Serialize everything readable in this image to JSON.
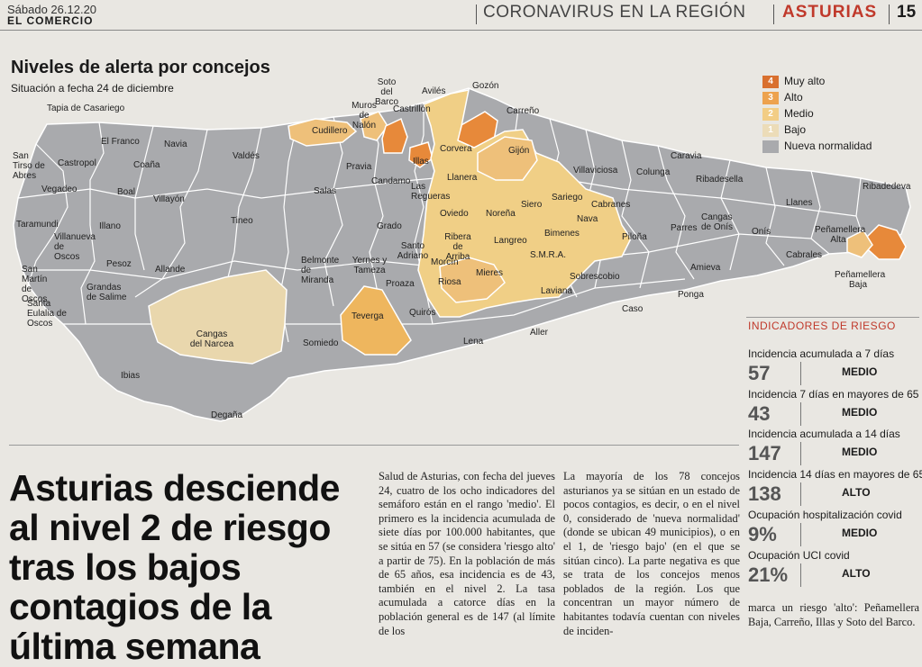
{
  "header": {
    "date": "Sábado 26.12.20",
    "newspaper": "EL COMERCIO",
    "section": "CORONAVIRUS EN LA REGIÓN",
    "region": "ASTURIAS",
    "page": "15"
  },
  "map": {
    "title": "Niveles de alerta por concejos",
    "subtitle": "Situación a fecha 24 de diciembre",
    "colors": {
      "muy_alto": "#e7893a",
      "alto": "#eeb65e",
      "medio": "#f0cf86",
      "bajo": "#e9d7ad",
      "nueva": "#a9aaad",
      "border": "#ffffff"
    },
    "labels": [
      "Tapia de Casariego",
      "El Franco",
      "Navia",
      "San Tirso de Abres",
      "Castropol",
      "Coaña",
      "Valdés",
      "Vegadeo",
      "Boal",
      "Villayón",
      "Taramundi",
      "Villanueva de Oscos",
      "Illano",
      "Tineo",
      "San Martín de Oscos",
      "Pesoz",
      "Allande",
      "Grandas de Salime",
      "Santa Eulalia de Oscos",
      "Cangas del Narcea",
      "Ibias",
      "Degaña",
      "Soto del Barco",
      "Muros de Nalón",
      "Avilés",
      "Castrillón",
      "Gozón",
      "Carreño",
      "Cudillero",
      "Pravia",
      "Illas",
      "Corvera",
      "Gijón",
      "Salas",
      "Candamo",
      "Las Regueras",
      "Llanera",
      "Villaviciosa",
      "Colunga",
      "Caravia",
      "Ribadesella",
      "Llanes",
      "Ribadedeva",
      "Grado",
      "Oviedo",
      "Noreña",
      "Siero",
      "Sariego",
      "Cabranes",
      "Nava",
      "Bimenes",
      "Piloña",
      "Parres",
      "Cangas de Onís",
      "Onís",
      "Peñamellera Alta",
      "Peñamellera Baja",
      "Cabrales",
      "Santo Adriano",
      "Belmonte de Miranda",
      "Yernes y Tameza",
      "Ribera de Arriba",
      "Morcín",
      "Langreo",
      "S.M.R.A.",
      "Sobrescobio",
      "Amieva",
      "Proaza",
      "Riosa",
      "Mieres",
      "Laviana",
      "Ponga",
      "Teverga",
      "Quirós",
      "Caso",
      "Somiedo",
      "Lena",
      "Aller"
    ]
  },
  "legend": [
    {
      "num": "4",
      "label": "Muy alto",
      "color": "#d9702f"
    },
    {
      "num": "3",
      "label": "Alto",
      "color": "#eda24e"
    },
    {
      "num": "2",
      "label": "Medio",
      "color": "#f2cd85"
    },
    {
      "num": "1",
      "label": "Bajo",
      "color": "#ecdcb8"
    },
    {
      "num": "",
      "label": "Nueva normalidad",
      "color": "#a9aaad"
    }
  ],
  "indicators": {
    "title": "INDICADORES DE RIESGO",
    "items": [
      {
        "label": "Incidencia acumulada a 7 días",
        "value": "57",
        "level": "MEDIO"
      },
      {
        "label": "Incidencia 7 días en mayores de 65",
        "value": "43",
        "level": "MEDIO"
      },
      {
        "label": "Incidencia acumulada a 14 días",
        "value": "147",
        "level": "MEDIO"
      },
      {
        "label": "Incidencia 14 días en mayores de 65",
        "value": "138",
        "level": "ALTO"
      },
      {
        "label": "Ocupación hospitalización covid",
        "value": "9%",
        "level": "MEDIO"
      },
      {
        "label": "Ocupación UCI covid",
        "value": "21%",
        "level": "ALTO"
      }
    ]
  },
  "article": {
    "headline": "Asturias desciende al nivel 2 de riesgo tras los bajos contagios de la última semana",
    "col1": "Salud de Asturias, con fecha del jueves 24, cuatro de los ocho indicadores del semáforo están en el rango 'medio'. El primero es la incidencia acumulada de siete días por 100.000 habitantes, que se sitúa en 57 (se considera 'riesgo alto' a partir de 75). En la población de más de 65 años, esa incidencia es de 43, también en el nivel 2. La tasa acumulada a catorce días en la población general es de 147 (al límite de los",
    "col2": "La mayoría de los 78 concejos asturianos ya se sitúan en un estado de pocos contagios, es decir, o en el nivel 0, considerado de 'nueva normalidad' (donde se ubican 49 municipios), o en el 1, de 'riesgo bajo' (en el que se sitúan cinco). La parte negativa es que se trata de los concejos menos poblados de la región. Los que concentran un mayor número de habitantes todavía cuentan con niveles de inciden-",
    "col3": "marca un riesgo 'alto': Peñamellera Baja, Carreño, Illas y Soto del Barco."
  }
}
